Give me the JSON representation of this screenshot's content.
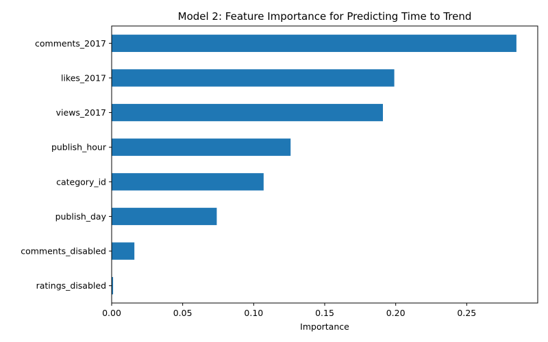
{
  "chart_data": {
    "type": "bar",
    "orientation": "horizontal",
    "title": "Model 2: Feature Importance for Predicting Time to Trend",
    "xlabel": "Importance",
    "ylabel": "",
    "xlim": [
      0,
      0.3
    ],
    "xticks": [
      0.0,
      0.05,
      0.1,
      0.15,
      0.2,
      0.25
    ],
    "xtick_labels": [
      "0.00",
      "0.05",
      "0.10",
      "0.15",
      "0.20",
      "0.25"
    ],
    "categories": [
      "comments_2017",
      "likes_2017",
      "views_2017",
      "publish_hour",
      "category_id",
      "publish_day",
      "comments_disabled",
      "ratings_disabled"
    ],
    "values": [
      0.285,
      0.199,
      0.191,
      0.126,
      0.107,
      0.074,
      0.016,
      0.001
    ],
    "bar_color": "#1f77b4",
    "grid": false,
    "legend": "none"
  }
}
